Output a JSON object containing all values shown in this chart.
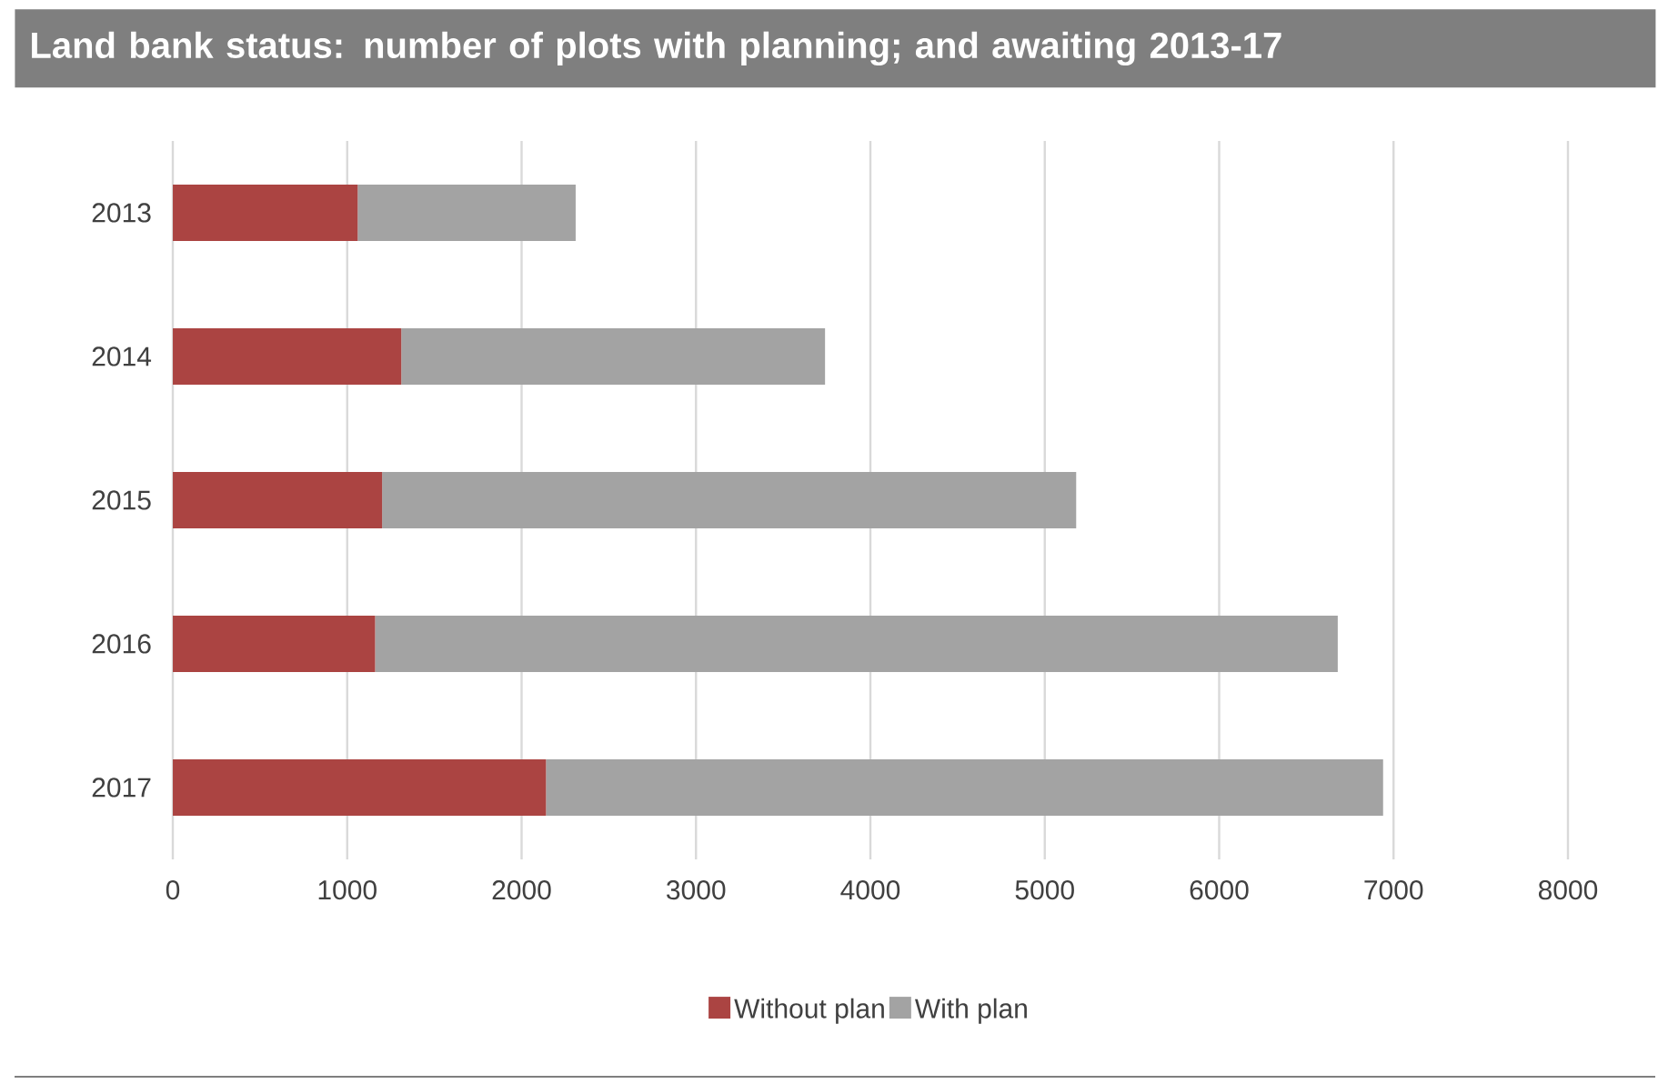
{
  "chart_data": {
    "type": "bar",
    "orientation": "horizontal",
    "stacked": true,
    "title": "Land bank status: number of plots with planning; and awaiting 2013-17",
    "categories": [
      "2013",
      "2014",
      "2015",
      "2016",
      "2017"
    ],
    "series": [
      {
        "name": "Without plan",
        "color": "#ab4442",
        "values": [
          1060,
          1310,
          1200,
          1160,
          2140
        ]
      },
      {
        "name": "With plan",
        "color": "#a3a3a3",
        "values": [
          1250,
          2430,
          3980,
          5520,
          4800
        ]
      }
    ],
    "xlim": [
      0,
      8000
    ],
    "xticks": [
      0,
      1000,
      2000,
      3000,
      4000,
      5000,
      6000,
      7000,
      8000
    ],
    "grid": "x",
    "legend": "bottom"
  }
}
